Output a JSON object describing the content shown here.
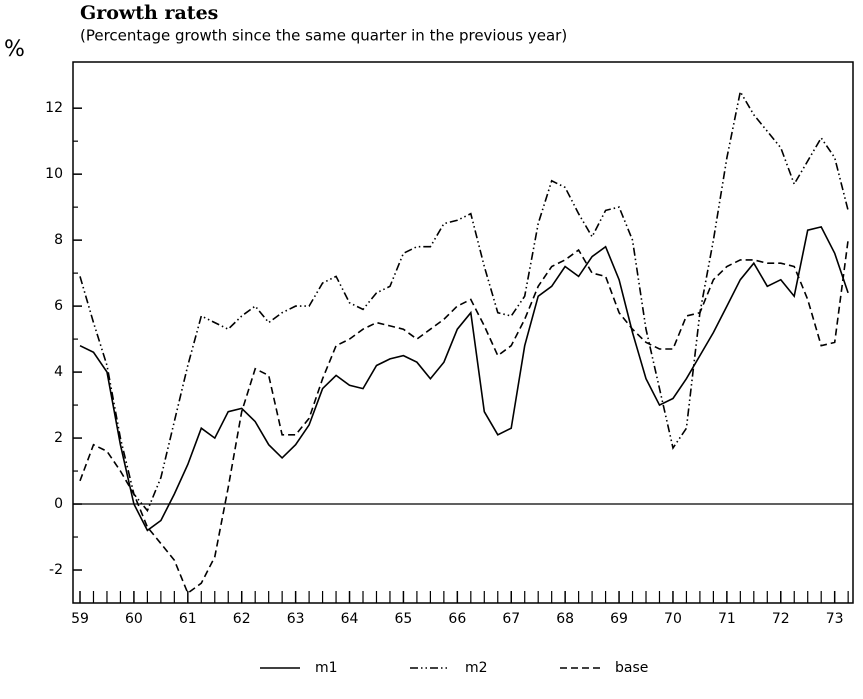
{
  "chart_data": {
    "type": "line",
    "title": "Growth rates",
    "subtitle": "(Percentage growth since the same quarter in the previous year)",
    "y_label": "%",
    "x": [
      59,
      59.25,
      59.5,
      59.75,
      60,
      60.25,
      60.5,
      60.75,
      61,
      61.25,
      61.5,
      61.75,
      62,
      62.25,
      62.5,
      62.75,
      63,
      63.25,
      63.5,
      63.75,
      64,
      64.25,
      64.5,
      64.75,
      65,
      65.25,
      65.5,
      65.75,
      66,
      66.25,
      66.5,
      66.75,
      67,
      67.25,
      67.5,
      67.75,
      68,
      68.25,
      68.5,
      68.75,
      69,
      69.25,
      69.5,
      69.75,
      70,
      70.25,
      70.5,
      70.75,
      71,
      71.25,
      71.5,
      71.75,
      72,
      72.25,
      72.5,
      72.75,
      73,
      73.25
    ],
    "series": [
      {
        "name": "m1",
        "color": "#000",
        "style": "solid",
        "values": [
          4.8,
          4.6,
          4.0,
          1.8,
          0.0,
          -0.8,
          -0.5,
          0.3,
          1.2,
          2.3,
          2.0,
          2.8,
          2.9,
          2.5,
          1.8,
          1.4,
          1.8,
          2.4,
          3.5,
          3.9,
          3.6,
          3.5,
          4.2,
          4.4,
          4.5,
          4.3,
          3.8,
          4.3,
          5.3,
          5.8,
          2.8,
          2.1,
          2.3,
          4.8,
          6.3,
          6.6,
          7.2,
          6.9,
          7.5,
          7.8,
          6.8,
          5.2,
          3.8,
          3.0,
          3.2,
          3.8,
          4.5,
          5.2,
          6.0,
          6.8,
          7.3,
          6.6,
          6.8,
          6.3,
          8.3,
          8.4,
          7.6,
          6.4
        ]
      },
      {
        "name": "m2",
        "color": "#000",
        "style": "dashdotdot",
        "values": [
          6.9,
          5.5,
          4.2,
          2.0,
          0.3,
          -0.2,
          0.8,
          2.5,
          4.2,
          5.7,
          5.5,
          5.3,
          5.7,
          6.0,
          5.5,
          5.8,
          6.0,
          6.0,
          6.7,
          6.9,
          6.1,
          5.9,
          6.4,
          6.6,
          7.6,
          7.8,
          7.8,
          8.5,
          8.6,
          8.8,
          7.2,
          5.8,
          5.7,
          6.3,
          8.5,
          9.8,
          9.6,
          8.8,
          8.1,
          8.9,
          9.0,
          8.0,
          5.3,
          3.5,
          1.7,
          2.3,
          5.8,
          8.0,
          10.5,
          12.5,
          11.8,
          11.3,
          10.8,
          9.7,
          10.4,
          11.1,
          10.5,
          8.9
        ]
      },
      {
        "name": "base",
        "color": "#000",
        "style": "dashed",
        "values": [
          0.7,
          1.8,
          1.6,
          1.0,
          0.3,
          -0.7,
          -1.2,
          -1.7,
          -2.7,
          -2.4,
          -1.6,
          0.5,
          2.8,
          4.1,
          3.9,
          2.1,
          2.1,
          2.6,
          3.8,
          4.8,
          5.0,
          5.3,
          5.5,
          5.4,
          5.3,
          5.0,
          5.3,
          5.6,
          6.0,
          6.2,
          5.4,
          4.5,
          4.8,
          5.6,
          6.6,
          7.2,
          7.4,
          7.7,
          7.0,
          6.9,
          5.8,
          5.3,
          4.9,
          4.7,
          4.7,
          5.7,
          5.8,
          6.8,
          7.2,
          7.4,
          7.4,
          7.3,
          7.3,
          7.2,
          6.2,
          4.8,
          4.9,
          8.0
        ]
      }
    ],
    "xlim": [
      58.87,
      73.34
    ],
    "xticks": [
      59,
      60,
      61,
      62,
      63,
      64,
      65,
      66,
      67,
      68,
      69,
      70,
      71,
      72,
      73
    ],
    "ylim": [
      -3,
      13.4
    ],
    "yticks": [
      -2,
      0,
      2,
      4,
      6,
      8,
      10,
      12
    ],
    "zero_line": true,
    "legend": "bottom"
  }
}
